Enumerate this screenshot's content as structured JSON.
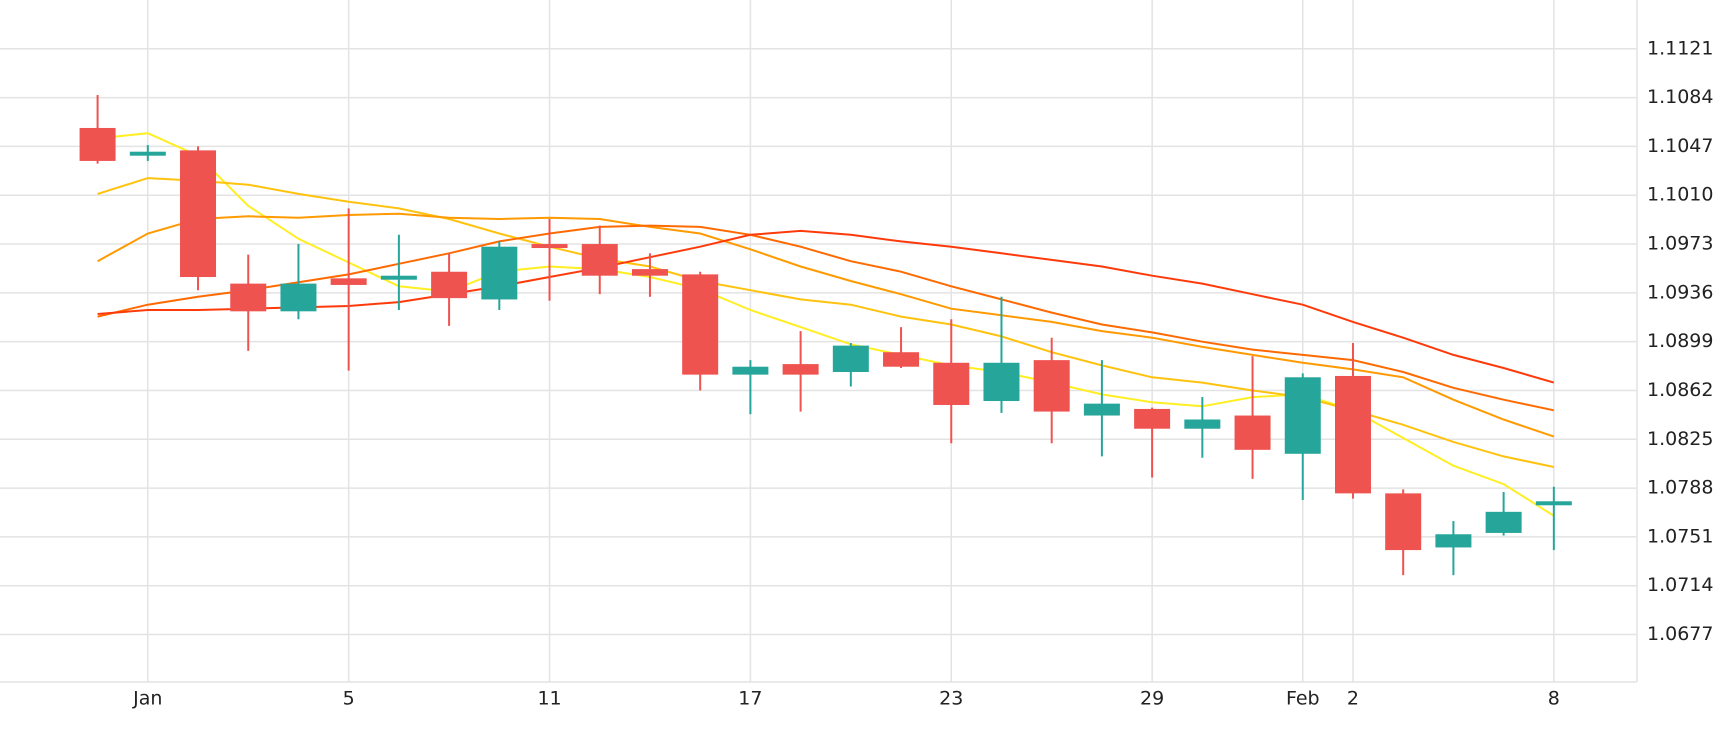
{
  "chart_data": {
    "type": "candlestick",
    "categories": [
      null,
      "Jan",
      null,
      null,
      null,
      "5",
      null,
      null,
      null,
      "11",
      null,
      null,
      null,
      "17",
      null,
      null,
      null,
      "23",
      null,
      null,
      null,
      "29",
      null,
      null,
      "Feb",
      "2",
      null,
      null,
      null,
      "8"
    ],
    "open": [
      1.1061,
      1.1041,
      1.1044,
      1.0943,
      1.0922,
      1.0947,
      1.0946,
      1.0952,
      1.0931,
      1.0973,
      1.0973,
      1.0954,
      1.095,
      1.0874,
      1.0882,
      1.0876,
      1.0891,
      1.0883,
      1.0854,
      1.0885,
      1.0843,
      1.0848,
      1.0833,
      1.0843,
      1.0814,
      1.0873,
      1.0784,
      1.0743,
      1.0754,
      1.0775
    ],
    "high": [
      1.1086,
      1.1048,
      1.1047,
      1.0965,
      1.0973,
      1.1,
      1.098,
      1.0966,
      1.0975,
      1.0992,
      1.0987,
      1.0966,
      1.0952,
      1.0885,
      1.0907,
      1.0898,
      1.091,
      1.0916,
      1.0933,
      1.0902,
      1.0885,
      1.0849,
      1.0857,
      1.0888,
      1.0875,
      1.0898,
      1.0787,
      1.0763,
      1.0785,
      1.0789
    ],
    "low": [
      1.1034,
      1.1036,
      1.0938,
      1.0892,
      1.0916,
      1.0877,
      1.0923,
      1.0911,
      1.0923,
      1.093,
      1.0935,
      1.0933,
      1.0862,
      1.0844,
      1.0846,
      1.0865,
      1.0879,
      1.0822,
      1.0845,
      1.0822,
      1.0812,
      1.0796,
      1.0811,
      1.0795,
      1.0779,
      1.078,
      1.0722,
      1.0722,
      1.0752,
      1.0741
    ],
    "close": [
      1.1036,
      1.1043,
      1.0948,
      1.0922,
      1.0943,
      1.0942,
      1.0949,
      1.0932,
      1.0971,
      1.097,
      1.0949,
      1.0949,
      1.0874,
      1.088,
      1.0874,
      1.0896,
      1.088,
      1.0851,
      1.0883,
      1.0846,
      1.0852,
      1.0833,
      1.084,
      1.0817,
      1.0872,
      1.0784,
      1.0741,
      1.0753,
      1.077,
      1.0778
    ],
    "up_color": "#26a69a",
    "down_color": "#ef5350",
    "lines": [
      {
        "color": "#ffee22",
        "values": [
          1.1053,
          1.1057,
          1.104,
          1.1002,
          1.0977,
          1.0959,
          1.0941,
          1.0937,
          1.0952,
          1.0956,
          1.0954,
          1.0948,
          1.0939,
          1.0923,
          1.091,
          1.0897,
          1.0889,
          1.0881,
          1.0876,
          1.0868,
          1.0859,
          1.0853,
          1.085,
          1.0857,
          1.0859,
          1.0847,
          1.0826,
          1.0805,
          1.0791,
          1.0767
        ]
      },
      {
        "color": "#ffc20e",
        "values": [
          1.1011,
          1.1023,
          1.1021,
          1.1018,
          1.1011,
          1.1005,
          1.1,
          1.0992,
          1.0981,
          1.0971,
          1.0962,
          1.0956,
          1.0945,
          1.0938,
          1.0931,
          1.0927,
          1.0918,
          1.0912,
          1.0903,
          1.0891,
          1.0881,
          1.0872,
          1.0868,
          1.0862,
          1.0857,
          1.0847,
          1.0836,
          1.0823,
          1.0812,
          1.0804
        ]
      },
      {
        "color": "#ff9a00",
        "values": [
          1.096,
          1.0981,
          1.0992,
          1.0994,
          1.0993,
          1.0995,
          1.0996,
          1.0993,
          1.0992,
          1.0993,
          1.0992,
          1.0986,
          1.0981,
          1.0969,
          1.0956,
          1.0945,
          1.0935,
          1.0924,
          1.0919,
          1.0914,
          1.0907,
          1.0902,
          1.0895,
          1.0889,
          1.0883,
          1.0878,
          1.0872,
          1.0855,
          1.084,
          1.0827
        ]
      },
      {
        "color": "#ff6a00",
        "values": [
          1.0918,
          1.0927,
          1.0933,
          1.0938,
          1.0944,
          1.095,
          1.0958,
          1.0966,
          1.0975,
          1.0981,
          1.0986,
          1.0987,
          1.0986,
          1.098,
          1.0971,
          1.096,
          1.0952,
          1.0941,
          1.0931,
          1.0921,
          1.0912,
          1.0906,
          1.0899,
          1.0893,
          1.0889,
          1.0885,
          1.0876,
          1.0864,
          1.0855,
          1.0847
        ]
      },
      {
        "color": "#ff3a0a",
        "values": [
          1.092,
          1.0923,
          1.0923,
          1.0924,
          1.0925,
          1.0926,
          1.0929,
          1.0935,
          1.0941,
          1.0948,
          1.0955,
          1.0963,
          1.0971,
          1.098,
          1.0983,
          1.098,
          1.0975,
          1.0971,
          1.0966,
          1.0961,
          1.0956,
          1.0949,
          1.0943,
          1.0935,
          1.0927,
          1.0914,
          1.0902,
          1.0889,
          1.0879,
          1.0868
        ]
      }
    ],
    "ylim": [
      1.0641,
      1.1158
    ],
    "yticks": [
      1.0677,
      1.0714,
      1.0751,
      1.0788,
      1.0825,
      1.0862,
      1.0899,
      1.0936,
      1.0973,
      {
        "value": 1.101,
        "label": "1.1010"
      },
      1.1047,
      1.1084,
      1.1121
    ],
    "grid": true
  }
}
